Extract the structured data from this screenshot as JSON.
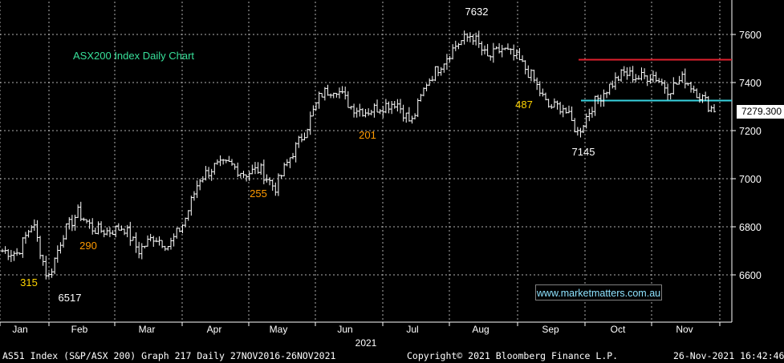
{
  "chart_data": {
    "type": "bar",
    "subtype": "ohlc-daily",
    "title": "ASX200 Index Daily Chart",
    "xlabel": "2021",
    "ylabel": "",
    "y_ticks": [
      6600,
      6800,
      7000,
      7200,
      7400,
      7600
    ],
    "ylim": [
      6440,
      7740
    ],
    "x_ticks": [
      "Jan",
      "Feb",
      "Mar",
      "Apr",
      "May",
      "Jun",
      "Jul",
      "Aug",
      "Sep",
      "Oct",
      "Nov"
    ],
    "last_value": "7279.300",
    "grid": true,
    "weekly_closes_approx": [
      6700,
      6690,
      6820,
      6580,
      6770,
      6860,
      6790,
      6780,
      6800,
      6700,
      6760,
      6720,
      6820,
      7000,
      7050,
      7060,
      7020,
      7040,
      6960,
      7090,
      7200,
      7350,
      7380,
      7300,
      7280,
      7300,
      7320,
      7230,
      7400,
      7480,
      7560,
      7600,
      7500,
      7540,
      7500,
      7420,
      7300,
      7300,
      7190,
      7310,
      7380,
      7440,
      7420,
      7430,
      7370,
      7420,
      7350,
      7279.3
    ],
    "annotations": [
      {
        "text": "315",
        "color": "#ffd400"
      },
      {
        "text": "6517",
        "color": "#ffffff"
      },
      {
        "text": "290",
        "color": "#ff9a00"
      },
      {
        "text": "255",
        "color": "#ff9a00"
      },
      {
        "text": "201",
        "color": "#ff9a00"
      },
      {
        "text": "7632",
        "color": "#ffffff"
      },
      {
        "text": "487",
        "color": "#ffd400"
      },
      {
        "text": "7145",
        "color": "#ffffff"
      }
    ],
    "lines": [
      {
        "name": "resistance",
        "value": 7495,
        "color": "#e0202e"
      },
      {
        "name": "support",
        "value": 7325,
        "color": "#39d3e0"
      }
    ],
    "colors": {
      "background": "#000000",
      "bars": "#ffffff",
      "grid": "#d0d0d0",
      "title": "#38e09a"
    }
  },
  "watermark": "www.marketmatters.com.au",
  "footer": {
    "left": "AS51 Index (S&P/ASX 200) Graph 217  Daily 27NOV2016-26NOV2021",
    "center": "Copyright© 2021 Bloomberg Finance L.P.",
    "right": "26-Nov-2021 16:42:46"
  }
}
